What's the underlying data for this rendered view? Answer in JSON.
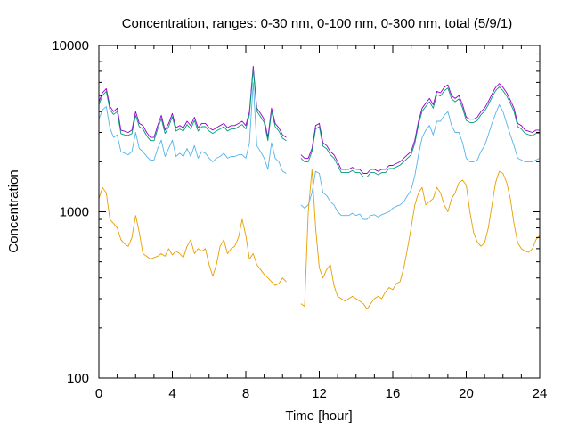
{
  "chart_data": {
    "type": "line",
    "title": "Concentration, ranges: 0-30 nm, 0-100 nm, 0-300 nm, total (5/9/1)",
    "xlabel": "Time [hour]",
    "ylabel": "Concentration",
    "xlim": [
      0,
      24
    ],
    "ylim": [
      100,
      10000
    ],
    "yscale": "log",
    "grid": false,
    "x_ticks": [
      0,
      4,
      8,
      12,
      16,
      20,
      24
    ],
    "x_tick_labels": [
      "0",
      "4",
      "8",
      "12",
      "16",
      "20",
      "24"
    ],
    "y_ticks": [
      100,
      1000,
      10000
    ],
    "y_tick_labels": [
      "100",
      "1000",
      "10000"
    ],
    "colors": {
      "total": "#9400d3",
      "range_0_300": "#009e73",
      "range_0_100": "#56b4e9",
      "range_0_30": "#e69f00"
    },
    "series": [
      {
        "key": "total",
        "color": "#9400d3",
        "x": [
          0.0,
          0.2,
          0.4,
          0.6,
          0.8,
          1.0,
          1.2,
          1.4,
          1.6,
          1.8,
          2.0,
          2.2,
          2.4,
          2.6,
          2.8,
          3.0,
          3.2,
          3.4,
          3.6,
          3.8,
          4.0,
          4.2,
          4.4,
          4.6,
          4.8,
          5.0,
          5.2,
          5.4,
          5.6,
          5.8,
          6.0,
          6.2,
          6.4,
          6.6,
          6.8,
          7.0,
          7.2,
          7.4,
          7.6,
          7.8,
          8.0,
          8.2,
          8.4,
          8.6,
          8.8,
          9.0,
          9.2,
          9.4,
          9.6,
          9.8,
          10.0,
          10.2,
          10.4,
          10.6,
          10.8,
          11.0,
          11.2,
          11.4,
          11.6,
          11.8,
          12.0,
          12.2,
          12.4,
          12.6,
          12.8,
          13.0,
          13.2,
          13.4,
          13.6,
          13.8,
          14.0,
          14.2,
          14.4,
          14.6,
          14.8,
          15.0,
          15.2,
          15.4,
          15.6,
          15.8,
          16.0,
          16.2,
          16.4,
          16.6,
          16.8,
          17.0,
          17.2,
          17.4,
          17.6,
          17.8,
          18.0,
          18.2,
          18.4,
          18.6,
          18.8,
          19.0,
          19.2,
          19.4,
          19.6,
          19.8,
          20.0,
          20.2,
          20.4,
          20.6,
          20.8,
          21.0,
          21.2,
          21.4,
          21.6,
          21.8,
          22.0,
          22.2,
          22.4,
          22.6,
          22.8,
          23.0,
          23.2,
          23.4,
          23.6,
          23.8,
          24.0
        ],
        "y": [
          4600,
          5200,
          5500,
          4300,
          4000,
          4200,
          3100,
          3050,
          3000,
          3100,
          4000,
          3400,
          3300,
          3000,
          2800,
          2800,
          3300,
          3800,
          3100,
          3400,
          3900,
          3200,
          3300,
          3200,
          3500,
          3300,
          3700,
          3200,
          3400,
          3400,
          3200,
          3100,
          3200,
          3300,
          3400,
          3200,
          3300,
          3300,
          3400,
          3500,
          3300,
          4000,
          7500,
          4200,
          3900,
          3600,
          2800,
          4200,
          3400,
          3200,
          2900,
          2800,
          null,
          null,
          null,
          2200,
          2100,
          2100,
          2400,
          3300,
          3400,
          2600,
          2500,
          2300,
          2200,
          2000,
          1800,
          1800,
          1800,
          1850,
          1800,
          1800,
          1700,
          1700,
          1800,
          1800,
          1750,
          1800,
          1800,
          1900,
          1900,
          1950,
          2000,
          2100,
          2200,
          2300,
          2700,
          3500,
          4200,
          4500,
          4800,
          4400,
          5300,
          5200,
          5600,
          5800,
          5000,
          4800,
          5000,
          4400,
          3700,
          3600,
          3600,
          3700,
          4000,
          4200,
          4600,
          5100,
          5600,
          5900,
          5600,
          5200,
          4700,
          4200,
          3400,
          3300,
          3100,
          3050,
          3000,
          3100,
          3100
        ]
      },
      {
        "key": "range_0_300",
        "color": "#009e73",
        "x": [
          0.0,
          0.2,
          0.4,
          0.6,
          0.8,
          1.0,
          1.2,
          1.4,
          1.6,
          1.8,
          2.0,
          2.2,
          2.4,
          2.6,
          2.8,
          3.0,
          3.2,
          3.4,
          3.6,
          3.8,
          4.0,
          4.2,
          4.4,
          4.6,
          4.8,
          5.0,
          5.2,
          5.4,
          5.6,
          5.8,
          6.0,
          6.2,
          6.4,
          6.6,
          6.8,
          7.0,
          7.2,
          7.4,
          7.6,
          7.8,
          8.0,
          8.2,
          8.4,
          8.6,
          8.8,
          9.0,
          9.2,
          9.4,
          9.6,
          9.8,
          10.0,
          10.2,
          10.4,
          10.6,
          10.8,
          11.0,
          11.2,
          11.4,
          11.6,
          11.8,
          12.0,
          12.2,
          12.4,
          12.6,
          12.8,
          13.0,
          13.2,
          13.4,
          13.6,
          13.8,
          14.0,
          14.2,
          14.4,
          14.6,
          14.8,
          15.0,
          15.2,
          15.4,
          15.6,
          15.8,
          16.0,
          16.2,
          16.4,
          16.6,
          16.8,
          17.0,
          17.2,
          17.4,
          17.6,
          17.8,
          18.0,
          18.2,
          18.4,
          18.6,
          18.8,
          19.0,
          19.2,
          19.4,
          19.6,
          19.8,
          20.0,
          20.2,
          20.4,
          20.6,
          20.8,
          21.0,
          21.2,
          21.4,
          21.6,
          21.8,
          22.0,
          22.2,
          22.4,
          22.6,
          22.8,
          23.0,
          23.2,
          23.4,
          23.6,
          23.8,
          24.0
        ],
        "y": [
          4400,
          5000,
          5300,
          4100,
          3850,
          4000,
          2950,
          2900,
          2880,
          2950,
          3800,
          3250,
          3150,
          2870,
          2680,
          2680,
          3150,
          3630,
          2960,
          3250,
          3730,
          3060,
          3150,
          3060,
          3350,
          3150,
          3540,
          3060,
          3250,
          3250,
          3060,
          2960,
          3060,
          3150,
          3250,
          3060,
          3150,
          3150,
          3250,
          3350,
          3150,
          3830,
          7200,
          4020,
          3730,
          3440,
          2680,
          4020,
          3250,
          3060,
          2770,
          2680,
          null,
          null,
          null,
          2100,
          2000,
          2000,
          2300,
          3150,
          3250,
          2480,
          2390,
          2200,
          2100,
          1910,
          1720,
          1720,
          1720,
          1770,
          1720,
          1720,
          1620,
          1620,
          1720,
          1720,
          1670,
          1720,
          1720,
          1820,
          1820,
          1860,
          1910,
          2000,
          2100,
          2200,
          2580,
          3350,
          4020,
          4300,
          4590,
          4200,
          5070,
          4970,
          5350,
          5550,
          4780,
          4590,
          4780,
          4200,
          3540,
          3440,
          3440,
          3540,
          3830,
          4020,
          4400,
          4880,
          5350,
          5640,
          5350,
          4970,
          4490,
          4020,
          3250,
          3150,
          2960,
          2910,
          2870,
          2960,
          2960
        ]
      },
      {
        "key": "range_0_100",
        "color": "#56b4e9",
        "x": [
          0.0,
          0.2,
          0.4,
          0.6,
          0.8,
          1.0,
          1.2,
          1.4,
          1.6,
          1.8,
          2.0,
          2.2,
          2.4,
          2.6,
          2.8,
          3.0,
          3.2,
          3.4,
          3.6,
          3.8,
          4.0,
          4.2,
          4.4,
          4.6,
          4.8,
          5.0,
          5.2,
          5.4,
          5.6,
          5.8,
          6.0,
          6.2,
          6.4,
          6.6,
          6.8,
          7.0,
          7.2,
          7.4,
          7.6,
          7.8,
          8.0,
          8.2,
          8.4,
          8.6,
          8.8,
          9.0,
          9.2,
          9.4,
          9.6,
          9.8,
          10.0,
          10.2,
          10.4,
          10.6,
          10.8,
          11.0,
          11.2,
          11.4,
          11.6,
          11.8,
          12.0,
          12.2,
          12.4,
          12.6,
          12.8,
          13.0,
          13.2,
          13.4,
          13.6,
          13.8,
          14.0,
          14.2,
          14.4,
          14.6,
          14.8,
          15.0,
          15.2,
          15.4,
          15.6,
          15.8,
          16.0,
          16.2,
          16.4,
          16.6,
          16.8,
          17.0,
          17.2,
          17.4,
          17.6,
          17.8,
          18.0,
          18.2,
          18.4,
          18.6,
          18.8,
          19.0,
          19.2,
          19.4,
          19.6,
          19.8,
          20.0,
          20.2,
          20.4,
          20.6,
          20.8,
          21.0,
          21.2,
          21.4,
          21.6,
          21.8,
          22.0,
          22.2,
          22.4,
          22.6,
          22.8,
          23.0,
          23.2,
          23.4,
          23.6,
          23.8,
          24.0
        ],
        "y": [
          3600,
          4100,
          4300,
          3200,
          2800,
          2900,
          2300,
          2250,
          2200,
          2300,
          3000,
          2400,
          2300,
          2150,
          2050,
          2050,
          2400,
          2700,
          2150,
          2400,
          2700,
          2150,
          2250,
          2150,
          2400,
          2150,
          2500,
          2100,
          2300,
          2250,
          2100,
          2000,
          2100,
          2150,
          2250,
          2100,
          2150,
          2150,
          2200,
          2200,
          2100,
          2600,
          6000,
          2500,
          2300,
          2100,
          1800,
          2600,
          2100,
          2000,
          1750,
          1700,
          null,
          null,
          null,
          1100,
          1050,
          1100,
          1300,
          1750,
          1700,
          1300,
          1250,
          1150,
          1100,
          1000,
          950,
          950,
          950,
          980,
          950,
          970,
          900,
          900,
          950,
          960,
          930,
          960,
          980,
          1000,
          1050,
          1080,
          1100,
          1150,
          1250,
          1350,
          1650,
          2200,
          2800,
          3100,
          3300,
          2900,
          3500,
          3500,
          3800,
          4000,
          3300,
          3000,
          3000,
          2600,
          2100,
          2000,
          2000,
          2050,
          2300,
          2500,
          2900,
          3400,
          3900,
          4400,
          4000,
          3400,
          2900,
          2500,
          2100,
          2050,
          2000,
          2000,
          2000,
          2050,
          2100
        ]
      },
      {
        "key": "range_0_30",
        "color": "#e69f00",
        "x": [
          0.0,
          0.2,
          0.4,
          0.6,
          0.8,
          1.0,
          1.2,
          1.4,
          1.6,
          1.8,
          2.0,
          2.2,
          2.4,
          2.6,
          2.8,
          3.0,
          3.2,
          3.4,
          3.6,
          3.8,
          4.0,
          4.2,
          4.4,
          4.6,
          4.8,
          5.0,
          5.2,
          5.4,
          5.6,
          5.8,
          6.0,
          6.2,
          6.4,
          6.6,
          6.8,
          7.0,
          7.2,
          7.4,
          7.6,
          7.8,
          8.0,
          8.2,
          8.4,
          8.6,
          8.8,
          9.0,
          9.2,
          9.4,
          9.6,
          9.8,
          10.0,
          10.2,
          10.4,
          10.6,
          10.8,
          11.0,
          11.2,
          11.4,
          11.6,
          11.8,
          12.0,
          12.2,
          12.4,
          12.6,
          12.8,
          13.0,
          13.2,
          13.4,
          13.6,
          13.8,
          14.0,
          14.2,
          14.4,
          14.6,
          14.8,
          15.0,
          15.2,
          15.4,
          15.6,
          15.8,
          16.0,
          16.2,
          16.4,
          16.6,
          16.8,
          17.0,
          17.2,
          17.4,
          17.6,
          17.8,
          18.0,
          18.2,
          18.4,
          18.6,
          18.8,
          19.0,
          19.2,
          19.4,
          19.6,
          19.8,
          20.0,
          20.2,
          20.4,
          20.6,
          20.8,
          21.0,
          21.2,
          21.4,
          21.6,
          21.8,
          22.0,
          22.2,
          22.4,
          22.6,
          22.8,
          23.0,
          23.2,
          23.4,
          23.6,
          23.8,
          24.0
        ],
        "y": [
          1200,
          1400,
          1300,
          900,
          850,
          800,
          680,
          640,
          620,
          700,
          950,
          750,
          560,
          540,
          520,
          530,
          540,
          560,
          540,
          600,
          550,
          580,
          560,
          530,
          620,
          680,
          560,
          600,
          580,
          600,
          480,
          410,
          480,
          620,
          680,
          560,
          600,
          620,
          700,
          900,
          720,
          520,
          560,
          480,
          450,
          420,
          400,
          380,
          360,
          370,
          400,
          380,
          null,
          null,
          null,
          280,
          270,
          1000,
          1800,
          800,
          460,
          400,
          450,
          480,
          360,
          310,
          300,
          290,
          300,
          310,
          300,
          290,
          280,
          260,
          280,
          300,
          310,
          300,
          330,
          350,
          340,
          370,
          380,
          460,
          600,
          800,
          1100,
          1300,
          1400,
          1100,
          1150,
          1200,
          1400,
          1300,
          1100,
          1000,
          1200,
          1300,
          1500,
          1550,
          1450,
          1000,
          750,
          660,
          620,
          650,
          800,
          1100,
          1500,
          1750,
          1700,
          1500,
          1200,
          850,
          650,
          600,
          580,
          570,
          600,
          680,
          720
        ]
      }
    ]
  }
}
